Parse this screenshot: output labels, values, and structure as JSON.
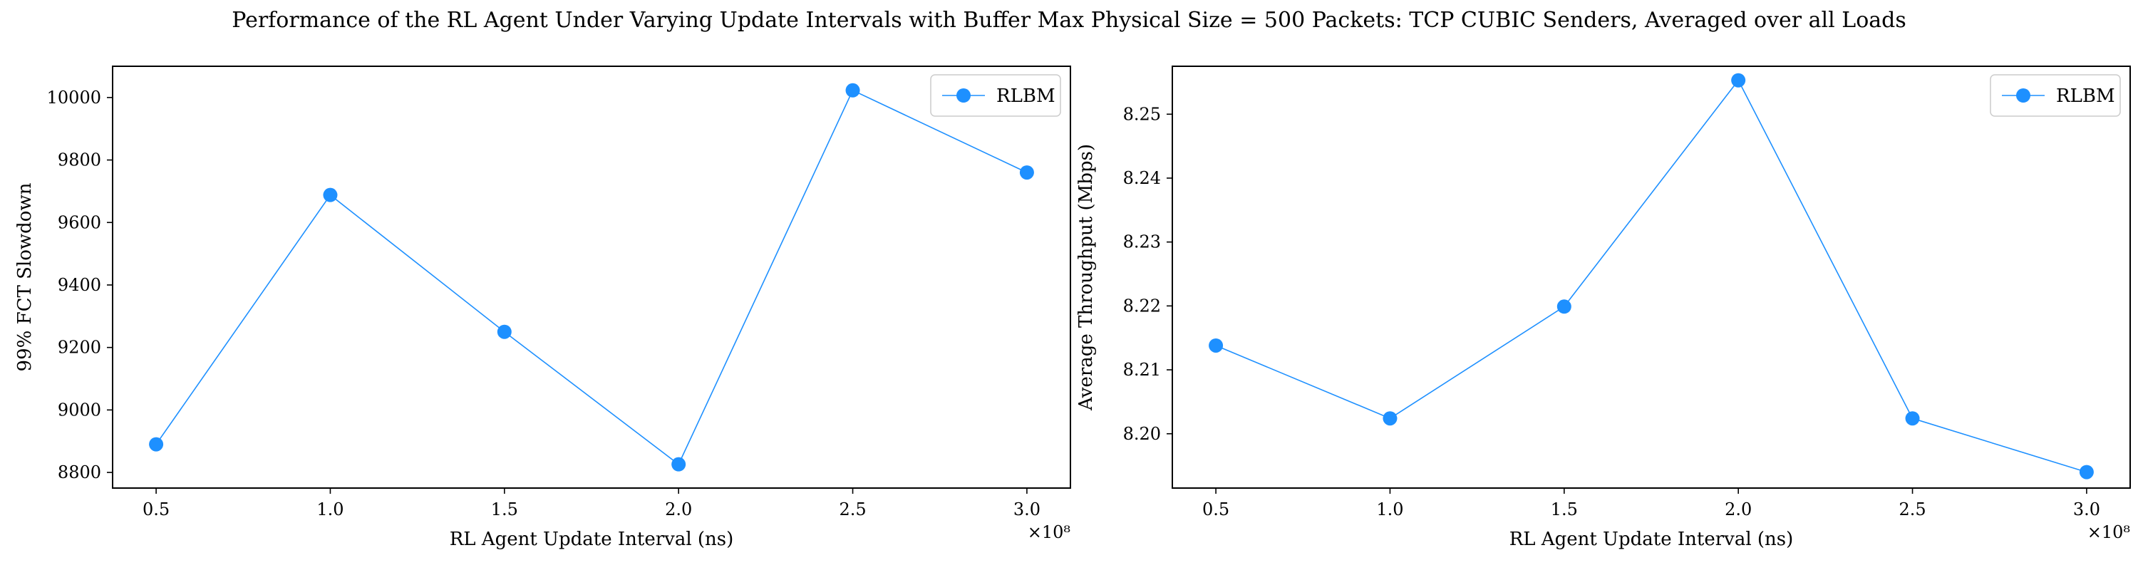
{
  "figure": {
    "title": "Performance of the RL Agent Under Varying Update Intervals with Buffer Max Physical Size = 500 Packets: TCP CUBIC Senders, Averaged over all Loads"
  },
  "chart_data": [
    {
      "type": "line",
      "title": "",
      "xlabel": "RL Agent Update Interval (ns)",
      "ylabel": "99% FCT Slowdown",
      "x_offset_label": "×10⁸",
      "xlim": [
        0.375,
        3.125
      ],
      "ylim": [
        8750,
        10100
      ],
      "xticks": [
        0.5,
        1.0,
        1.5,
        2.0,
        2.5,
        3.0
      ],
      "xtick_labels": [
        "0.5",
        "1.0",
        "1.5",
        "2.0",
        "2.5",
        "3.0"
      ],
      "yticks": [
        8800,
        9000,
        9200,
        9400,
        9600,
        9800,
        10000
      ],
      "ytick_labels": [
        "8800",
        "9000",
        "9200",
        "9400",
        "9600",
        "9800",
        "10000"
      ],
      "grid": false,
      "legend": "top-right",
      "series": [
        {
          "name": "RLBM",
          "color": "#1E90FF",
          "marker": "circle",
          "x": [
            0.5,
            1.0,
            1.5,
            2.0,
            2.5,
            3.0
          ],
          "y": [
            8890,
            9688,
            9250,
            8826,
            10023,
            9760
          ]
        }
      ]
    },
    {
      "type": "line",
      "title": "",
      "xlabel": "RL Agent Update Interval (ns)",
      "ylabel": "Average Throughput (Mbps)",
      "x_offset_label": "×10⁸",
      "xlim": [
        0.375,
        3.125
      ],
      "ylim": [
        8.1915,
        8.2575
      ],
      "xticks": [
        0.5,
        1.0,
        1.5,
        2.0,
        2.5,
        3.0
      ],
      "xtick_labels": [
        "0.5",
        "1.0",
        "1.5",
        "2.0",
        "2.5",
        "3.0"
      ],
      "yticks": [
        8.2,
        8.21,
        8.22,
        8.23,
        8.24,
        8.25
      ],
      "ytick_labels": [
        "8.20",
        "8.21",
        "8.22",
        "8.23",
        "8.24",
        "8.25"
      ],
      "grid": false,
      "legend": "top-right",
      "series": [
        {
          "name": "RLBM",
          "color": "#1E90FF",
          "marker": "circle",
          "x": [
            0.5,
            1.0,
            1.5,
            2.0,
            2.5,
            3.0
          ],
          "y": [
            8.2138,
            8.2024,
            8.2199,
            8.2553,
            8.2024,
            8.194
          ]
        }
      ]
    }
  ]
}
